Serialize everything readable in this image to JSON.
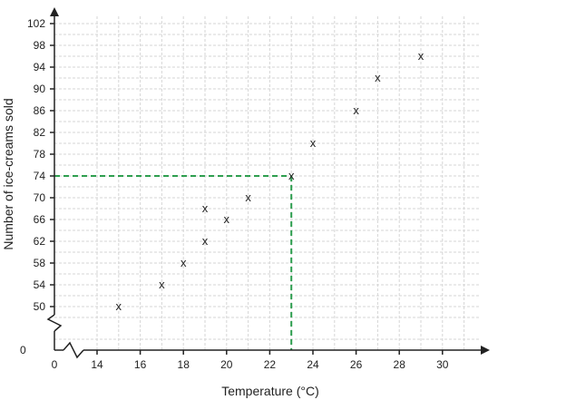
{
  "chart_data": {
    "type": "scatter",
    "title": "",
    "xlabel": "Temperature (°C)",
    "ylabel": "Number of ice-creams sold",
    "xlim": [
      13,
      31
    ],
    "ylim": [
      46,
      104
    ],
    "axis_break": true,
    "x_origin_label": "0",
    "y_origin_label": "0",
    "x_ticks": [
      14,
      16,
      18,
      20,
      22,
      24,
      26,
      28,
      30
    ],
    "y_ticks": [
      50,
      54,
      58,
      62,
      66,
      70,
      74,
      78,
      82,
      86,
      90,
      94,
      98,
      102
    ],
    "grid": true,
    "marker": "x",
    "points": [
      {
        "x": 15,
        "y": 50
      },
      {
        "x": 17,
        "y": 54
      },
      {
        "x": 18,
        "y": 58
      },
      {
        "x": 19,
        "y": 62
      },
      {
        "x": 19,
        "y": 68
      },
      {
        "x": 20,
        "y": 66
      },
      {
        "x": 21,
        "y": 70
      },
      {
        "x": 23,
        "y": 74
      },
      {
        "x": 24,
        "y": 80
      },
      {
        "x": 26,
        "y": 86
      },
      {
        "x": 27,
        "y": 92
      },
      {
        "x": 29,
        "y": 96
      }
    ],
    "reading_guide": {
      "x": 23,
      "y": 74,
      "color": "#2e9e4f",
      "style": "dashed"
    },
    "colors": {
      "axis": "#222222",
      "grid": "#d6d6d6",
      "marker": "#222222"
    }
  }
}
